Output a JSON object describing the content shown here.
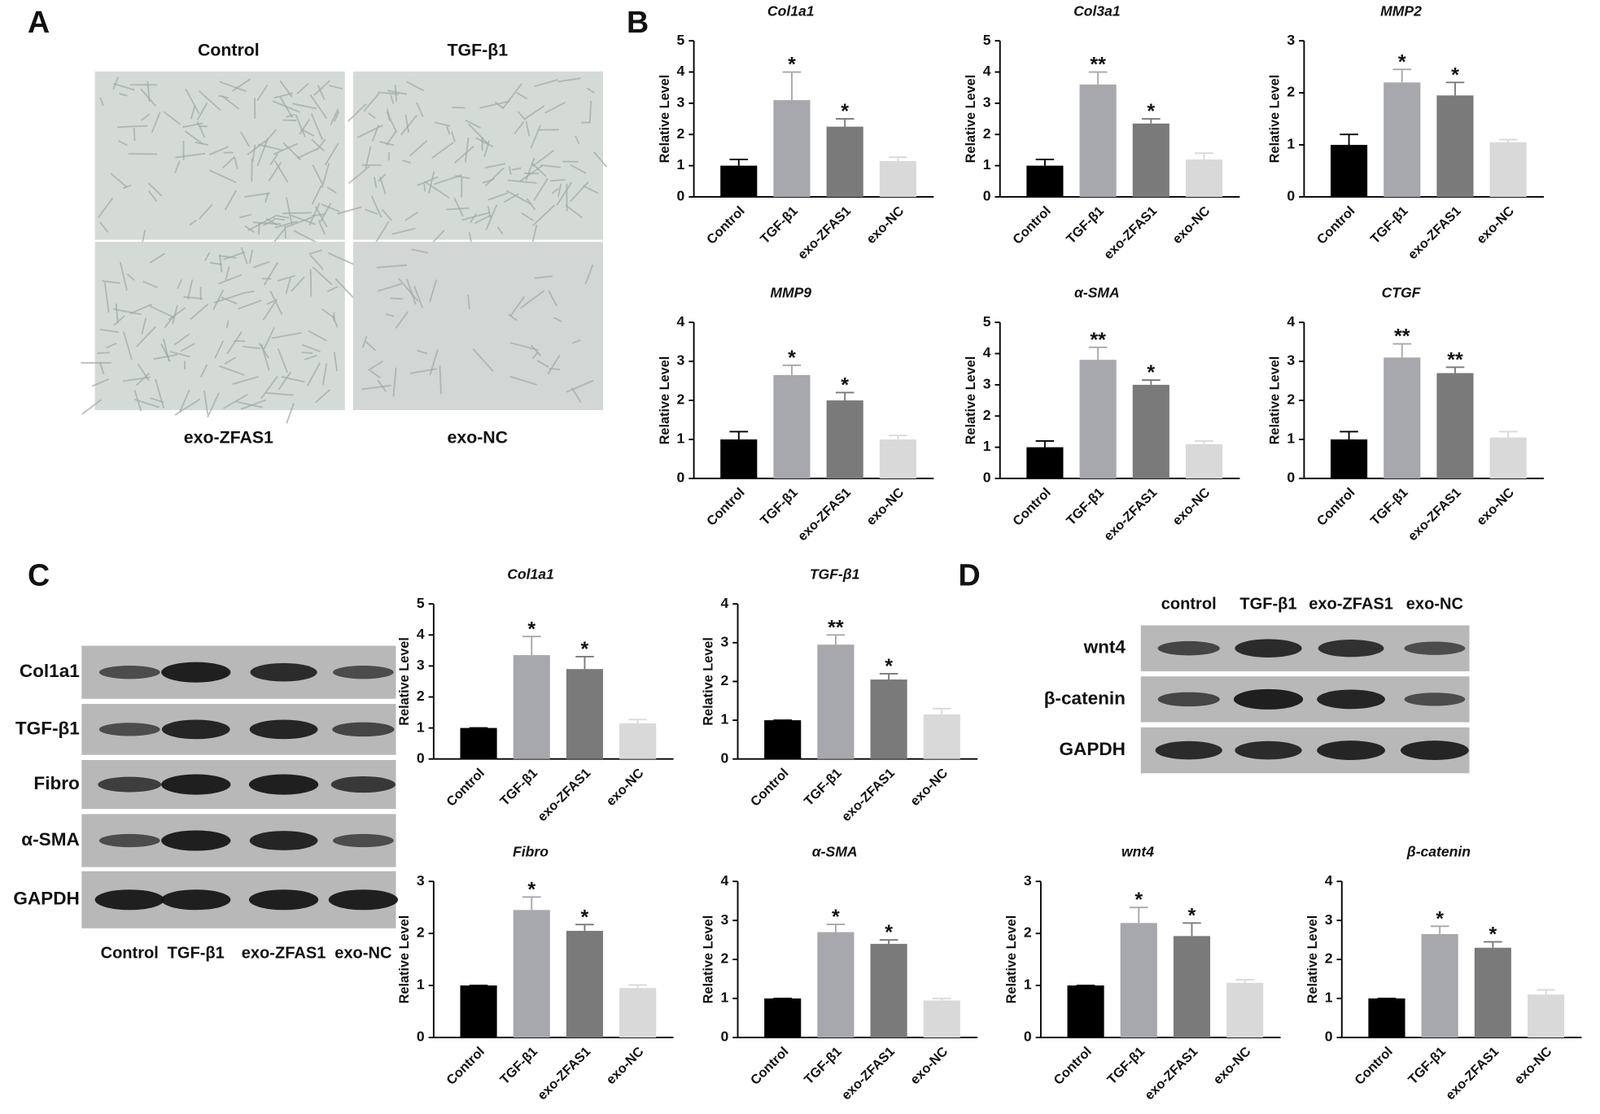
{
  "figure": {
    "panel_labels": [
      "A",
      "B",
      "C",
      "D"
    ],
    "panel_a": {
      "images": [
        "Control",
        "TGF-β1",
        "exo-ZFAS1",
        "exo-NC"
      ]
    },
    "panel_c_blot": {
      "rows": [
        "Col1a1",
        "TGF-β1",
        "Fibro",
        "α-SMA",
        "GAPDH"
      ],
      "lanes": [
        "Control",
        "TGF-β1",
        "exo-ZFAS1",
        "exo-NC"
      ]
    },
    "panel_d_blot": {
      "rows": [
        "wnt4",
        "β-catenin",
        "GAPDH"
      ],
      "lanes": [
        "control",
        "TGF-β1",
        "exo-ZFAS1",
        "exo-NC"
      ]
    }
  },
  "chart_data": [
    {
      "type": "bar",
      "title": "Col1a1",
      "ylabel": "Relative Level",
      "categories": [
        "Control",
        "TGF-β1",
        "exo-ZFAS1",
        "exo-NC"
      ],
      "values": [
        1.0,
        3.1,
        2.25,
        1.15
      ],
      "errors": [
        0.2,
        0.9,
        0.25,
        0.12
      ],
      "annotations": [
        null,
        "*",
        "*",
        null
      ],
      "colors": [
        "#000000",
        "#a7a7ae",
        "#7a7a7a",
        "#d9d9d9"
      ],
      "ylim": [
        0,
        5
      ],
      "yticks": [
        0,
        1,
        2,
        3,
        4,
        5
      ]
    },
    {
      "type": "bar",
      "title": "Col3a1",
      "ylabel": "Relative Level",
      "categories": [
        "Control",
        "TGF-β1",
        "exo-ZFAS1",
        "exo-NC"
      ],
      "values": [
        1.0,
        3.6,
        2.35,
        1.2
      ],
      "errors": [
        0.2,
        0.4,
        0.15,
        0.2
      ],
      "annotations": [
        null,
        "**",
        "*",
        null
      ],
      "colors": [
        "#000000",
        "#a7a7ae",
        "#7a7a7a",
        "#d9d9d9"
      ],
      "ylim": [
        0,
        5
      ],
      "yticks": [
        0,
        1,
        2,
        3,
        4,
        5
      ]
    },
    {
      "type": "bar",
      "title": "MMP2",
      "ylabel": "Relative Level",
      "categories": [
        "Control",
        "TGF-β1",
        "exo-ZFAS1",
        "exo-NC"
      ],
      "values": [
        1.0,
        2.2,
        1.95,
        1.05
      ],
      "errors": [
        0.2,
        0.25,
        0.25,
        0.05
      ],
      "annotations": [
        null,
        "*",
        "*",
        null
      ],
      "colors": [
        "#000000",
        "#a7a7ae",
        "#7a7a7a",
        "#d9d9d9"
      ],
      "ylim": [
        0,
        3
      ],
      "yticks": [
        0,
        1,
        2,
        3
      ]
    },
    {
      "type": "bar",
      "title": "MMP9",
      "ylabel": "Relative Level",
      "categories": [
        "Control",
        "TGF-β1",
        "exo-ZFAS1",
        "exo-NC"
      ],
      "values": [
        1.0,
        2.65,
        2.0,
        1.0
      ],
      "errors": [
        0.2,
        0.25,
        0.2,
        0.1
      ],
      "annotations": [
        null,
        "*",
        "*",
        null
      ],
      "colors": [
        "#000000",
        "#a7a7ae",
        "#7a7a7a",
        "#d9d9d9"
      ],
      "ylim": [
        0,
        4
      ],
      "yticks": [
        0,
        1,
        2,
        3,
        4
      ]
    },
    {
      "type": "bar",
      "title": "α-SMA",
      "ylabel": "Relative Level",
      "categories": [
        "Control",
        "TGF-β1",
        "exo-ZFAS1",
        "exo-NC"
      ],
      "values": [
        1.0,
        3.8,
        3.0,
        1.1
      ],
      "errors": [
        0.2,
        0.4,
        0.15,
        0.1
      ],
      "annotations": [
        null,
        "**",
        "*",
        null
      ],
      "colors": [
        "#000000",
        "#a7a7ae",
        "#7a7a7a",
        "#d9d9d9"
      ],
      "ylim": [
        0,
        5
      ],
      "yticks": [
        0,
        1,
        2,
        3,
        4,
        5
      ]
    },
    {
      "type": "bar",
      "title": "CTGF",
      "ylabel": "Relative Level",
      "categories": [
        "Control",
        "TGF-β1",
        "exo-ZFAS1",
        "exo-NC"
      ],
      "values": [
        1.0,
        3.1,
        2.7,
        1.05
      ],
      "errors": [
        0.2,
        0.35,
        0.15,
        0.15
      ],
      "annotations": [
        null,
        "**",
        "**",
        null
      ],
      "colors": [
        "#000000",
        "#a7a7ae",
        "#7a7a7a",
        "#d9d9d9"
      ],
      "ylim": [
        0,
        4
      ],
      "yticks": [
        0,
        1,
        2,
        3,
        4
      ]
    },
    {
      "type": "bar",
      "title": "Col1a1",
      "ylabel": "Relative Level",
      "categories": [
        "Control",
        "TGF-β1",
        "exo-ZFAS1",
        "exo-NC"
      ],
      "values": [
        1.0,
        3.35,
        2.9,
        1.15
      ],
      "errors": [
        0,
        0.6,
        0.4,
        0.12
      ],
      "annotations": [
        null,
        "*",
        "*",
        null
      ],
      "colors": [
        "#000000",
        "#a7a7ae",
        "#7a7a7a",
        "#d9d9d9"
      ],
      "ylim": [
        0,
        5
      ],
      "yticks": [
        0,
        1,
        2,
        3,
        4,
        5
      ]
    },
    {
      "type": "bar",
      "title": "TGF-β1",
      "ylabel": "Relative Level",
      "categories": [
        "Control",
        "TGF-β1",
        "exo-ZFAS1",
        "exo-NC"
      ],
      "values": [
        1.0,
        2.95,
        2.05,
        1.15
      ],
      "errors": [
        0,
        0.25,
        0.15,
        0.15
      ],
      "annotations": [
        null,
        "**",
        "*",
        null
      ],
      "colors": [
        "#000000",
        "#a7a7ae",
        "#7a7a7a",
        "#d9d9d9"
      ],
      "ylim": [
        0,
        4
      ],
      "yticks": [
        0,
        1,
        2,
        3,
        4
      ]
    },
    {
      "type": "bar",
      "title": "Fibro",
      "ylabel": "Relative Level",
      "categories": [
        "Control",
        "TGF-β1",
        "exo-ZFAS1",
        "exo-NC"
      ],
      "values": [
        1.0,
        2.45,
        2.05,
        0.95
      ],
      "errors": [
        0,
        0.25,
        0.12,
        0.06
      ],
      "annotations": [
        null,
        "*",
        "*",
        null
      ],
      "colors": [
        "#000000",
        "#a7a7ae",
        "#7a7a7a",
        "#d9d9d9"
      ],
      "ylim": [
        0,
        3
      ],
      "yticks": [
        0,
        1,
        2,
        3
      ]
    },
    {
      "type": "bar",
      "title": "α-SMA",
      "ylabel": "Relative Level",
      "categories": [
        "Control",
        "TGF-β1",
        "exo-ZFAS1",
        "exo-NC"
      ],
      "values": [
        1.0,
        2.7,
        2.4,
        0.95
      ],
      "errors": [
        0,
        0.2,
        0.1,
        0.05
      ],
      "annotations": [
        null,
        "*",
        "*",
        null
      ],
      "colors": [
        "#000000",
        "#a7a7ae",
        "#7a7a7a",
        "#d9d9d9"
      ],
      "ylim": [
        0,
        4
      ],
      "yticks": [
        0,
        1,
        2,
        3,
        4
      ]
    },
    {
      "type": "bar",
      "title": "wnt4",
      "ylabel": "Relative Level",
      "categories": [
        "Control",
        "TGF-β1",
        "exo-ZFAS1",
        "exo-NC"
      ],
      "values": [
        1.0,
        2.2,
        1.95,
        1.05
      ],
      "errors": [
        0,
        0.3,
        0.25,
        0.06
      ],
      "annotations": [
        null,
        "*",
        "*",
        null
      ],
      "colors": [
        "#000000",
        "#a7a7ae",
        "#7a7a7a",
        "#d9d9d9"
      ],
      "ylim": [
        0,
        3
      ],
      "yticks": [
        0,
        1,
        2,
        3
      ]
    },
    {
      "type": "bar",
      "title": "β-catenin",
      "ylabel": "Relative Level",
      "categories": [
        "Control",
        "TGF-β1",
        "exo-ZFAS1",
        "exo-NC"
      ],
      "values": [
        1.0,
        2.65,
        2.3,
        1.1
      ],
      "errors": [
        0,
        0.2,
        0.15,
        0.12
      ],
      "annotations": [
        null,
        "*",
        "*",
        null
      ],
      "colors": [
        "#000000",
        "#a7a7ae",
        "#7a7a7a",
        "#d9d9d9"
      ],
      "ylim": [
        0,
        4
      ],
      "yticks": [
        0,
        1,
        2,
        3,
        4
      ]
    }
  ]
}
